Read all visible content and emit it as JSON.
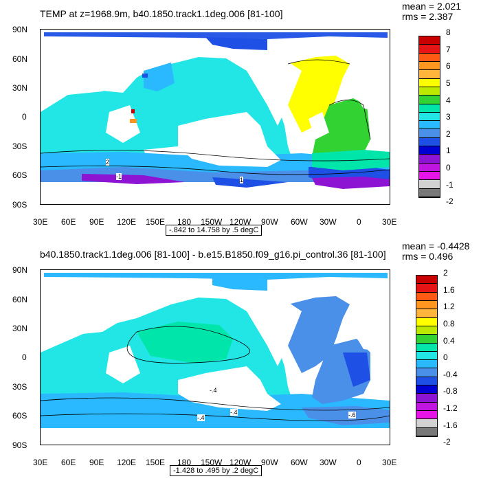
{
  "top": {
    "title": "TEMP at z=1968.9m, b40.1850.track1.1deg.006 [81-100]",
    "mean": "mean = 2.021",
    "rms": "rms = 2.387",
    "range": "-.842 to 14.758 by .5 degC",
    "colorbar_labels": [
      "8",
      "7",
      "6",
      "5",
      "4",
      "3",
      "2",
      "1",
      "0",
      "-1",
      "-2"
    ],
    "colorbar_colors": [
      "#c80000",
      "#e61414",
      "#ff5a14",
      "#ff9620",
      "#ffb43c",
      "#ffff00",
      "#bde800",
      "#32d232",
      "#00e6aa",
      "#22e6e6",
      "#2ab8ff",
      "#4a8fe8",
      "#1e50e6",
      "#0000d2",
      "#8c14d2",
      "#c014e0",
      "#e614e6",
      "#d2d2d2",
      "#787878"
    ],
    "contour_labels": [
      "2",
      "1",
      "-1"
    ]
  },
  "bottom": {
    "title": "b40.1850.track1.1deg.006 [81-100] - b.e15.B1850.f09_g16.pi_control.36 [81-100]",
    "mean": "mean = -0.4428",
    "rms": "rms = 0.496",
    "range": "-1.428 to .495 by .2 degC",
    "colorbar_labels": [
      "2",
      "1.6",
      "1.2",
      "0.8",
      "0.4",
      "0",
      "-0.4",
      "-0.8",
      "-1.2",
      "-1.6",
      "-2"
    ],
    "colorbar_colors": [
      "#c80000",
      "#e61414",
      "#ff5a14",
      "#ff9620",
      "#ffb43c",
      "#ffff00",
      "#bde800",
      "#32d232",
      "#00e6aa",
      "#22e6e6",
      "#2ab8ff",
      "#4a8fe8",
      "#1e50e6",
      "#0000d2",
      "#8c14d2",
      "#c014e0",
      "#e614e6",
      "#d2d2d2",
      "#787878"
    ],
    "contour_labels": [
      "-.4",
      "-.4",
      "-.4",
      "-.6"
    ]
  },
  "axes": {
    "lat_labels": [
      "90N",
      "60N",
      "30N",
      "0",
      "30S",
      "60S",
      "90S"
    ],
    "lon_labels": [
      "30E",
      "60E",
      "90E",
      "120E",
      "150E",
      "180",
      "150W",
      "120W",
      "90W",
      "60W",
      "30W",
      "0",
      "30E"
    ]
  },
  "colors": {
    "ocean_cyan": "#22e6e6",
    "ocean_lightblue": "#2ab8ff",
    "ocean_mid": "#4a8fe8",
    "ocean_deep": "#1e50e6",
    "ocean_teal": "#00e6aa",
    "atl_yellow": "#ffff00",
    "atl_green": "#32d232",
    "purple": "#8c14d2",
    "deep_blue": "#0000d2"
  }
}
